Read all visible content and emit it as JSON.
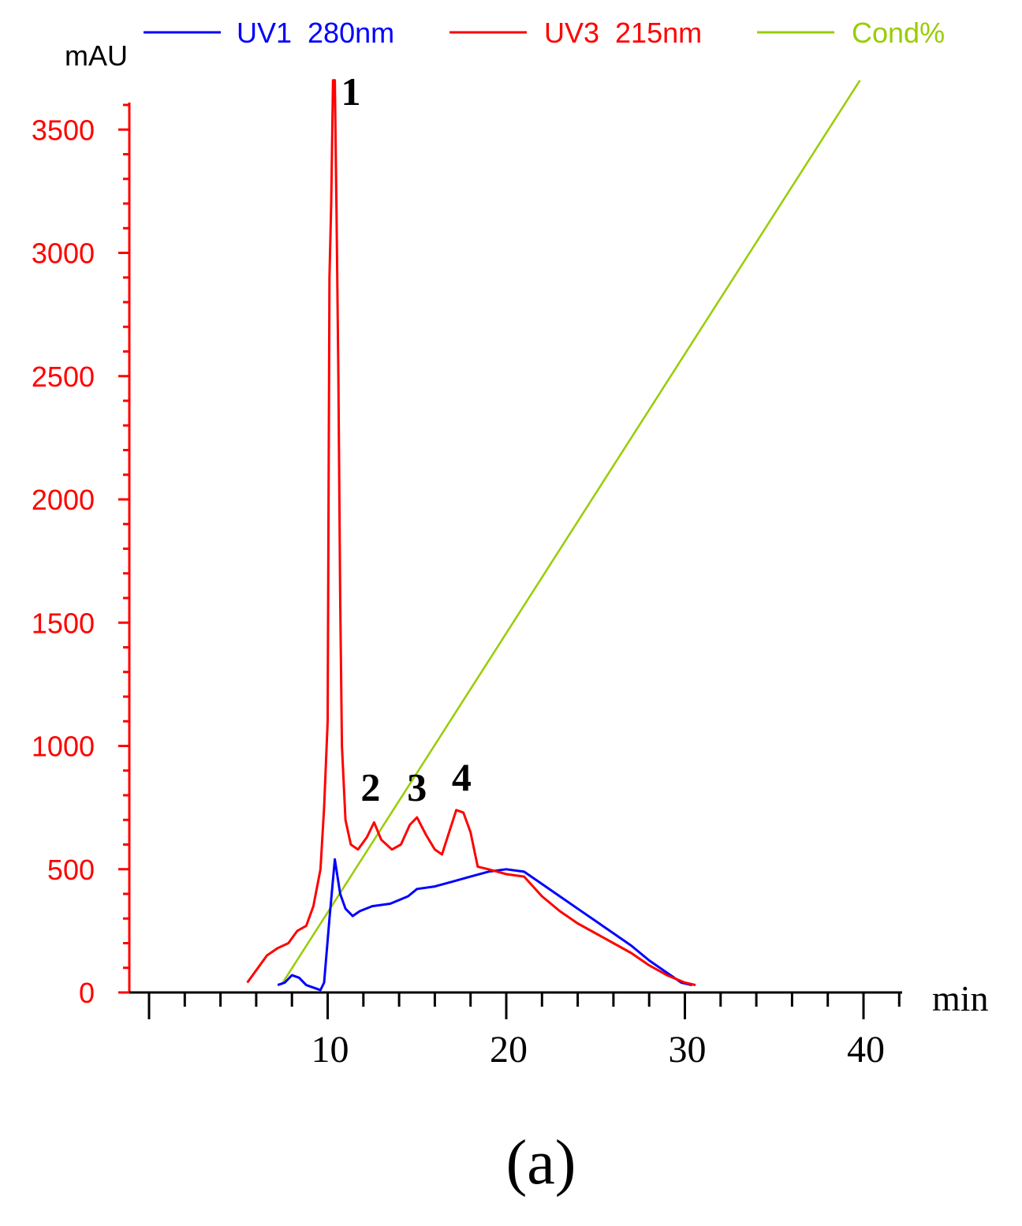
{
  "chart_data": {
    "type": "line",
    "y_unit_label": "mAU",
    "x_unit_label": "min",
    "panel_label": "(a)",
    "xlim": [
      0,
      42
    ],
    "ylim": [
      0,
      3750
    ],
    "x_ticks": [
      10,
      20,
      30,
      40
    ],
    "y_ticks": [
      0,
      500,
      1000,
      1500,
      2000,
      2500,
      3000,
      3500
    ],
    "legend_position": "top",
    "grid": false,
    "colors": {
      "uv1": "#0000ff",
      "uv3": "#ff0000",
      "cond": "#99cc00",
      "axis_x": "#000000",
      "axis_y": "#ff0000"
    },
    "series": [
      {
        "key": "uv1",
        "name": "UV1  280nm",
        "points": [
          [
            7.2,
            30
          ],
          [
            7.6,
            40
          ],
          [
            8.0,
            70
          ],
          [
            8.4,
            60
          ],
          [
            8.8,
            30
          ],
          [
            9.2,
            20
          ],
          [
            9.6,
            10
          ],
          [
            9.8,
            40
          ],
          [
            10.1,
            300
          ],
          [
            10.4,
            540
          ],
          [
            10.7,
            400
          ],
          [
            11.0,
            340
          ],
          [
            11.4,
            310
          ],
          [
            11.8,
            330
          ],
          [
            12.5,
            350
          ],
          [
            13.5,
            360
          ],
          [
            14.5,
            390
          ],
          [
            15.0,
            420
          ],
          [
            16.0,
            430
          ],
          [
            17.0,
            450
          ],
          [
            18.0,
            470
          ],
          [
            19.0,
            490
          ],
          [
            20.0,
            500
          ],
          [
            21.0,
            490
          ],
          [
            22.0,
            440
          ],
          [
            23.0,
            390
          ],
          [
            24.0,
            340
          ],
          [
            25.0,
            290
          ],
          [
            26.0,
            240
          ],
          [
            27.0,
            190
          ],
          [
            28.0,
            130
          ],
          [
            29.0,
            80
          ],
          [
            29.8,
            40
          ],
          [
            30.4,
            30
          ]
        ]
      },
      {
        "key": "uv3",
        "name": "UV3  215nm",
        "points": [
          [
            5.5,
            40
          ],
          [
            6.0,
            90
          ],
          [
            6.6,
            150
          ],
          [
            7.2,
            180
          ],
          [
            7.8,
            200
          ],
          [
            8.3,
            250
          ],
          [
            8.8,
            270
          ],
          [
            9.2,
            350
          ],
          [
            9.6,
            500
          ],
          [
            9.8,
            750
          ],
          [
            10.0,
            1100
          ],
          [
            10.1,
            2900
          ],
          [
            10.2,
            3200
          ],
          [
            10.3,
            3700
          ],
          [
            10.4,
            3700
          ],
          [
            10.5,
            3150
          ],
          [
            10.6,
            2500
          ],
          [
            10.7,
            1600
          ],
          [
            10.8,
            1000
          ],
          [
            11.0,
            700
          ],
          [
            11.3,
            600
          ],
          [
            11.7,
            580
          ],
          [
            12.2,
            630
          ],
          [
            12.6,
            690
          ],
          [
            13.0,
            620
          ],
          [
            13.6,
            580
          ],
          [
            14.1,
            600
          ],
          [
            14.6,
            680
          ],
          [
            15.0,
            710
          ],
          [
            15.5,
            640
          ],
          [
            16.0,
            580
          ],
          [
            16.4,
            560
          ],
          [
            16.8,
            650
          ],
          [
            17.2,
            740
          ],
          [
            17.6,
            730
          ],
          [
            18.0,
            650
          ],
          [
            18.4,
            510
          ],
          [
            19.0,
            500
          ],
          [
            20.0,
            480
          ],
          [
            21.0,
            470
          ],
          [
            22.0,
            390
          ],
          [
            23.0,
            330
          ],
          [
            24.0,
            280
          ],
          [
            25.0,
            240
          ],
          [
            26.0,
            200
          ],
          [
            27.0,
            160
          ],
          [
            28.0,
            110
          ],
          [
            29.0,
            70
          ],
          [
            30.0,
            40
          ],
          [
            30.6,
            30
          ]
        ]
      },
      {
        "key": "cond",
        "name": "Cond%",
        "points": [
          [
            7.4,
            30
          ],
          [
            39.8,
            3700
          ]
        ]
      }
    ],
    "annotations": [
      {
        "text": "1",
        "x": 11.3,
        "y": 3600
      },
      {
        "text": "2",
        "x": 12.4,
        "y": 780
      },
      {
        "text": "3",
        "x": 15.0,
        "y": 780
      },
      {
        "text": "4",
        "x": 17.5,
        "y": 820
      }
    ]
  }
}
